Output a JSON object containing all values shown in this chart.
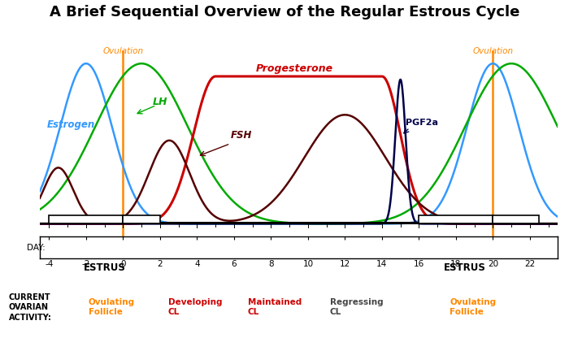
{
  "title": "A Brief Sequential Overview of the Regular Estrous Cycle",
  "title_fontsize": 13,
  "background_color": "#ffffff",
  "plot_bg": "#ffffff",
  "x_min": -4.5,
  "x_max": 23.5,
  "ovulation_lines": [
    0,
    20
  ],
  "ovulation_color": "#ff8800",
  "estrogen_color": "#3399ff",
  "lh_color": "#00aa00",
  "progesterone_color": "#cc0000",
  "fsh_color": "#550000",
  "pgf2a_color": "#00004a",
  "label_estrogen": "Estrogen",
  "label_lh": "LH",
  "label_progesterone": "Progesterone",
  "label_fsh": "FSH",
  "label_pgf2a": "PGF2a",
  "label_ovulation": "Ovulation",
  "day_ticks": [
    -4,
    -2,
    0,
    2,
    4,
    6,
    8,
    10,
    12,
    14,
    16,
    18,
    20,
    22
  ]
}
